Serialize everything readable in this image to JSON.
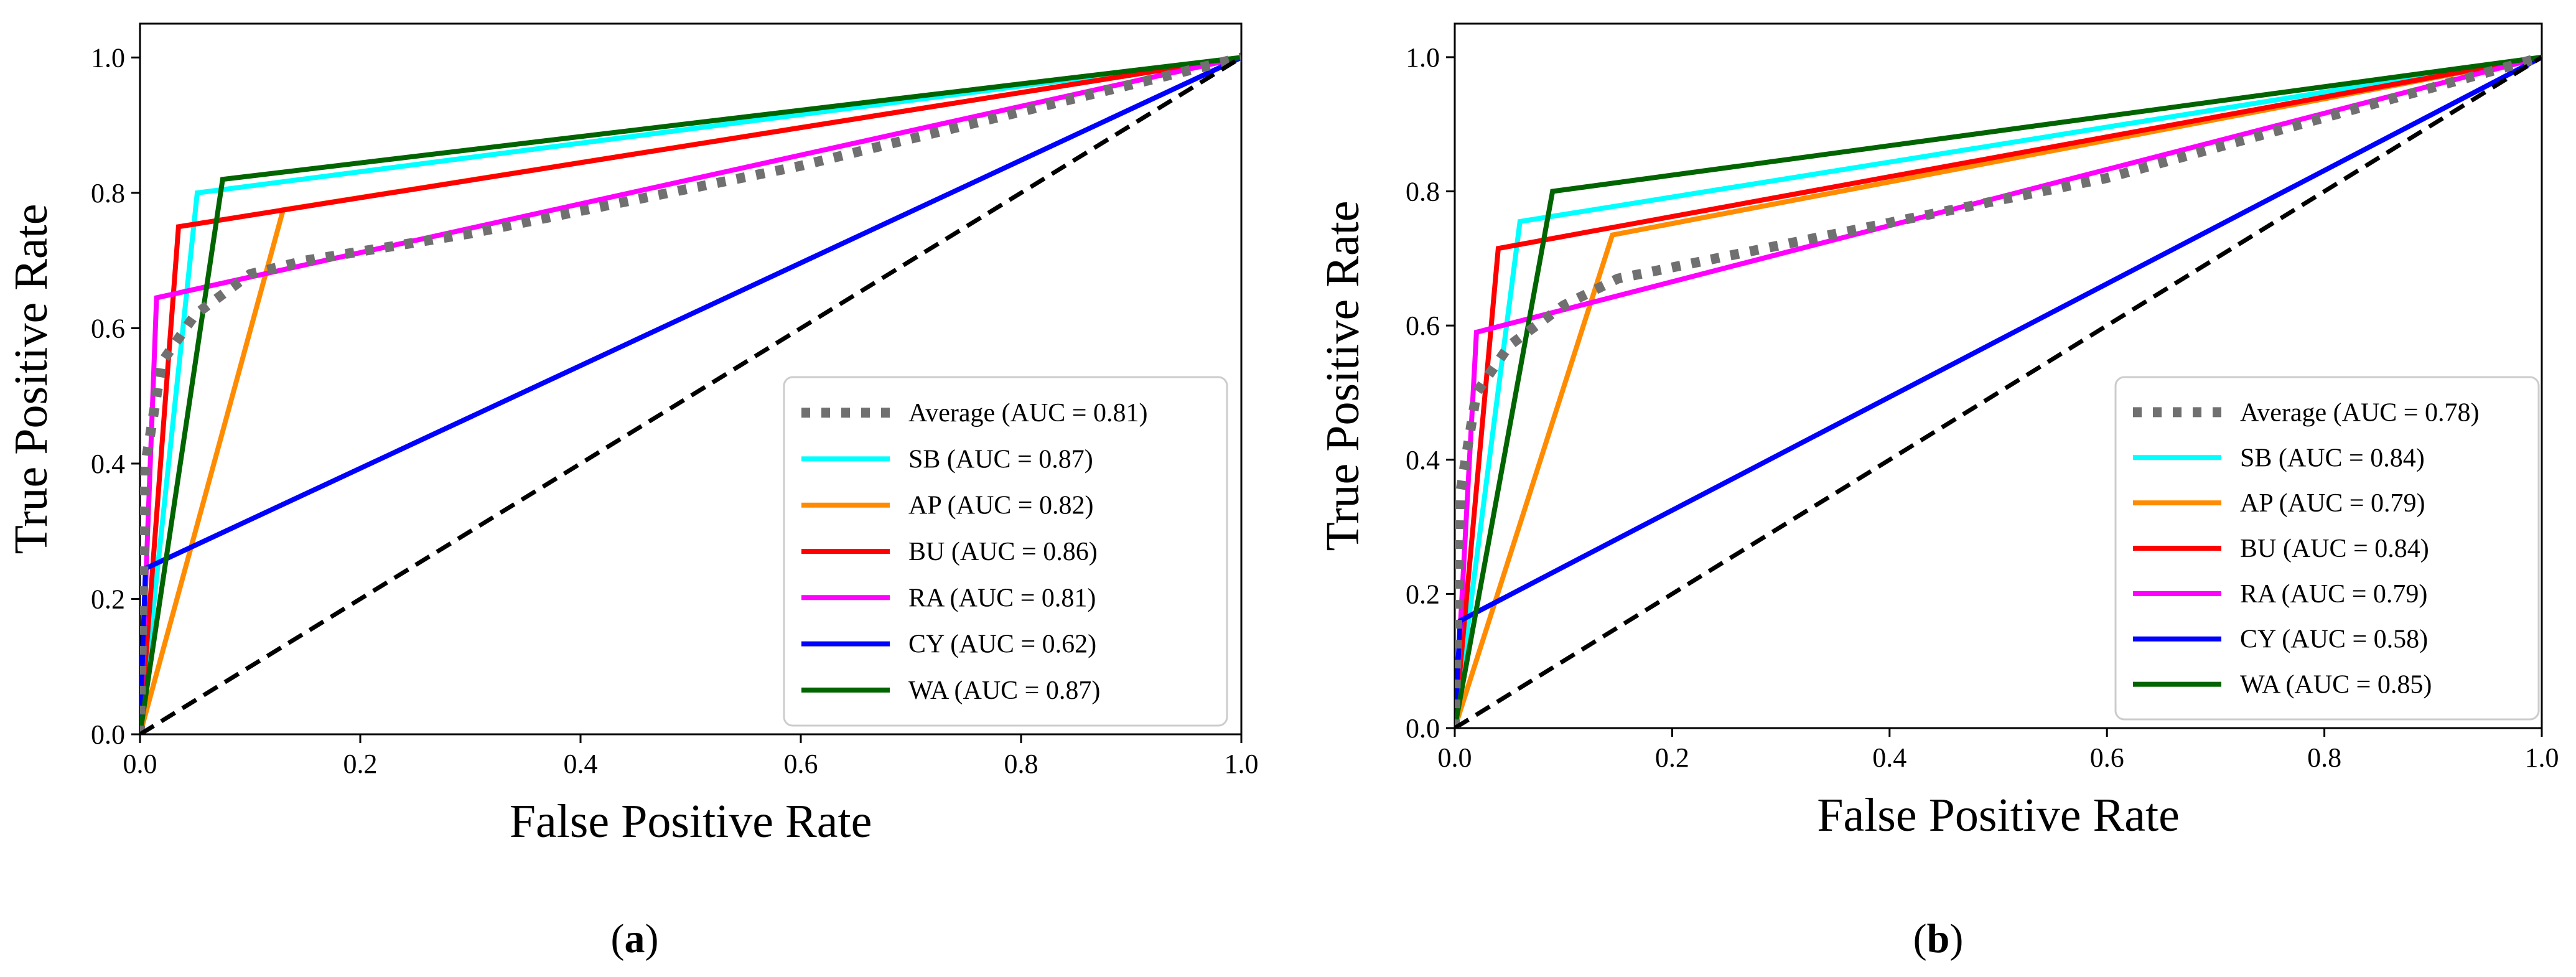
{
  "chart_data": [
    {
      "type": "line",
      "panel_label": "a",
      "caption_open": "(",
      "caption_close": ")",
      "xlabel": "False Positive Rate",
      "ylabel": "True Positive Rate",
      "xlim": [
        0,
        1
      ],
      "ylim": [
        0,
        1.05
      ],
      "xticks": [
        "0.0",
        "0.2",
        "0.4",
        "0.6",
        "0.8",
        "1.0"
      ],
      "yticks": [
        "0.0",
        "0.2",
        "0.4",
        "0.6",
        "0.8",
        "1.0"
      ],
      "legend_position": "lower-right",
      "grid": false,
      "reference_line": {
        "x": [
          0,
          1
        ],
        "y": [
          0,
          1
        ],
        "color": "#000000",
        "style": "dashed"
      },
      "series": [
        {
          "name": "Average (AUC = 0.81)",
          "color": "#707070",
          "style": "dotted",
          "x": [
            0,
            0.005,
            0.02,
            0.05,
            0.1,
            0.15,
            0.3,
            0.6,
            1
          ],
          "y": [
            0,
            0.4,
            0.55,
            0.62,
            0.68,
            0.7,
            0.74,
            0.84,
            1
          ]
        },
        {
          "name": "SB (AUC = 0.87)",
          "color": "#00FFFF",
          "style": "solid",
          "x": [
            0,
            0.052,
            1
          ],
          "y": [
            0,
            0.8,
            1
          ]
        },
        {
          "name": "AP (AUC = 0.82)",
          "color": "#FF8C00",
          "style": "solid",
          "x": [
            0,
            0.13,
            1
          ],
          "y": [
            0,
            0.775,
            1
          ]
        },
        {
          "name": "BU (AUC = 0.86)",
          "color": "#FF0000",
          "style": "solid",
          "x": [
            0,
            0.035,
            1
          ],
          "y": [
            0,
            0.75,
            1
          ]
        },
        {
          "name": "RA (AUC = 0.81)",
          "color": "#FF00FF",
          "style": "solid",
          "x": [
            0,
            0.015,
            1
          ],
          "y": [
            0,
            0.645,
            1
          ]
        },
        {
          "name": "CY (AUC = 0.62)",
          "color": "#0000FF",
          "style": "solid",
          "x": [
            0,
            0.005,
            1
          ],
          "y": [
            0,
            0.245,
            1
          ]
        },
        {
          "name": "WA (AUC = 0.87)",
          "color": "#006400",
          "style": "solid",
          "x": [
            0,
            0.075,
            1
          ],
          "y": [
            0,
            0.82,
            1
          ]
        }
      ]
    },
    {
      "type": "line",
      "panel_label": "b",
      "caption_open": "(",
      "caption_close": ")",
      "xlabel": "False Positive Rate",
      "ylabel": "True Positive Rate",
      "xlim": [
        0,
        1
      ],
      "ylim": [
        0,
        1.05
      ],
      "xticks": [
        "0.0",
        "0.2",
        "0.4",
        "0.6",
        "0.8",
        "1.0"
      ],
      "yticks": [
        "0.0",
        "0.2",
        "0.4",
        "0.6",
        "0.8",
        "1.0"
      ],
      "legend_position": "lower-right",
      "grid": false,
      "reference_line": {
        "x": [
          0,
          1
        ],
        "y": [
          0,
          1
        ],
        "color": "#000000",
        "style": "dashed"
      },
      "series": [
        {
          "name": "Average (AUC = 0.78)",
          "color": "#707070",
          "style": "dotted",
          "x": [
            0,
            0.005,
            0.02,
            0.05,
            0.1,
            0.15,
            0.3,
            0.6,
            1
          ],
          "y": [
            0,
            0.35,
            0.5,
            0.57,
            0.63,
            0.67,
            0.72,
            0.82,
            1
          ]
        },
        {
          "name": "SB (AUC = 0.84)",
          "color": "#00FFFF",
          "style": "solid",
          "x": [
            0,
            0.06,
            1
          ],
          "y": [
            0,
            0.755,
            1
          ]
        },
        {
          "name": "AP (AUC = 0.79)",
          "color": "#FF8C00",
          "style": "solid",
          "x": [
            0,
            0.145,
            1
          ],
          "y": [
            0,
            0.735,
            1
          ]
        },
        {
          "name": "BU (AUC = 0.84)",
          "color": "#FF0000",
          "style": "solid",
          "x": [
            0,
            0.04,
            1
          ],
          "y": [
            0,
            0.715,
            1
          ]
        },
        {
          "name": "RA (AUC = 0.79)",
          "color": "#FF00FF",
          "style": "solid",
          "x": [
            0,
            0.02,
            1
          ],
          "y": [
            0,
            0.59,
            1
          ]
        },
        {
          "name": "CY (AUC = 0.58)",
          "color": "#0000FF",
          "style": "solid",
          "x": [
            0,
            0.005,
            1
          ],
          "y": [
            0,
            0.16,
            1
          ]
        },
        {
          "name": "WA (AUC = 0.85)",
          "color": "#006400",
          "style": "solid",
          "x": [
            0,
            0.09,
            1
          ],
          "y": [
            0,
            0.8,
            1
          ]
        }
      ]
    }
  ]
}
